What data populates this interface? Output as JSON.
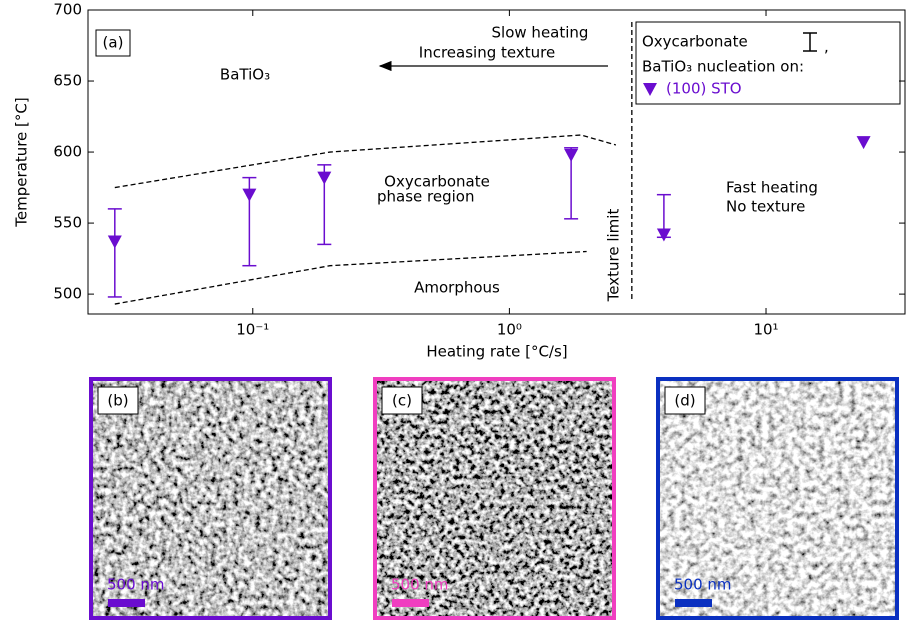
{
  "chart_data": {
    "type": "errorbar-scatter",
    "xlabel": "Heating rate [°C/s]",
    "ylabel": "Temperature [°C]",
    "xscale": "log",
    "xlim": [
      0.0228,
      34.8
    ],
    "ylim": [
      486,
      700
    ],
    "xticks": [
      {
        "value": 0.1,
        "label": "10⁻¹"
      },
      {
        "value": 1,
        "label": "10⁰"
      },
      {
        "value": 10,
        "label": "10¹"
      }
    ],
    "yticks": [
      500,
      550,
      600,
      650,
      700
    ],
    "series": [
      {
        "name": "(100) STO",
        "color": "#6a0dcf",
        "marker": "triangle-down",
        "x": [
          0.029,
          0.097,
          0.19,
          1.74,
          4,
          24
        ],
        "values": [
          537,
          570,
          582,
          598,
          542,
          607
        ]
      }
    ],
    "oxycarbonate": {
      "name": "Oxycarbonate",
      "color": "#6a0dcf",
      "x": [
        0.029,
        0.097,
        0.19,
        1.74,
        4
      ],
      "low": [
        498,
        520,
        535,
        553,
        540
      ],
      "high": [
        560,
        582,
        591,
        603,
        570
      ]
    },
    "legend_separator": ",",
    "legend_subtitle": "BaTiO₃ nucleation on:",
    "boundaries": [
      {
        "x": [
          0.029,
          0.2,
          1.9,
          2.6
        ],
        "y": [
          575,
          600,
          612,
          605
        ]
      },
      {
        "x": [
          0.029,
          0.2,
          2
        ],
        "y": [
          493,
          520,
          530
        ]
      }
    ],
    "texture_limit": {
      "x": 3,
      "label": "Texture limit"
    },
    "annotations": {
      "panel": "(a)",
      "batio3": "BaTiO₃",
      "slow": "Slow heating",
      "texture": "Increasing texture",
      "oxy1": "Oxycarbonate",
      "oxy2": "phase region",
      "amorphous": "Amorphous",
      "fast": "Fast heating",
      "notexture": "No texture"
    }
  },
  "panels": [
    {
      "label": "(b)",
      "scale": "500 nm",
      "color": "#6a0dcf"
    },
    {
      "label": "(c)",
      "scale": "500 nm",
      "color": "#f03ec0"
    },
    {
      "label": "(d)",
      "scale": "500 nm",
      "color": "#0a30c0"
    }
  ]
}
